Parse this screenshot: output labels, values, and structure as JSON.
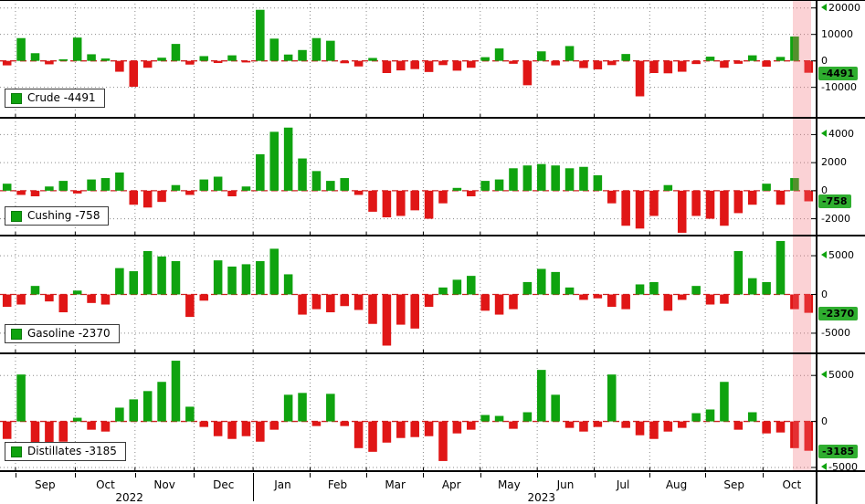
{
  "colors": {
    "green": "#0fa30f",
    "red": "#e01616",
    "zero_line": "#cc2222",
    "grid": "#8a8a8a",
    "badge_bg": "#2fae2f",
    "highlight": "rgba(242,106,116,0.30)"
  },
  "xaxis": {
    "n_weeks": 58,
    "months": [
      {
        "label": "Sep",
        "week": 3.2
      },
      {
        "label": "Oct",
        "week": 7.5
      },
      {
        "label": "Nov",
        "week": 11.7
      },
      {
        "label": "Dec",
        "week": 15.9
      },
      {
        "label": "Jan",
        "week": 20.1
      },
      {
        "label": "Feb",
        "week": 24.0
      },
      {
        "label": "Mar",
        "week": 28.1
      },
      {
        "label": "Apr",
        "week": 32.1
      },
      {
        "label": "May",
        "week": 36.2
      },
      {
        "label": "Jun",
        "week": 40.2
      },
      {
        "label": "Jul",
        "week": 44.3
      },
      {
        "label": "Aug",
        "week": 48.1
      },
      {
        "label": "Sep",
        "week": 52.2
      },
      {
        "label": "Oct",
        "week": 56.3
      }
    ],
    "years": [
      {
        "label": "2022",
        "week": 9.2
      },
      {
        "label": "2023",
        "week": 38.5
      }
    ],
    "year_separator_week": 18.0
  },
  "highlight": {
    "from_week": 56.35,
    "to_week": 57.65
  },
  "chart_data": [
    {
      "type": "bar",
      "name": "Crude",
      "legend": "Crude  -4491",
      "badge": "-4491",
      "last_value": -4491,
      "ylim": [
        -21500,
        23000
      ],
      "yticks": [
        {
          "v": 20000,
          "label": "20000",
          "arrow": true
        },
        {
          "v": 10000,
          "label": "10000"
        },
        {
          "v": 0,
          "label": "0"
        },
        {
          "v": -10000,
          "label": "-10000"
        }
      ],
      "values": [
        -1700,
        8600,
        2900,
        -1300,
        600,
        8800,
        2500,
        900,
        -4100,
        -9800,
        -2600,
        1200,
        6400,
        -1400,
        1800,
        -800,
        2100,
        -600,
        19300,
        8400,
        2400,
        4100,
        8600,
        7600,
        -900,
        -2100,
        1100,
        -4600,
        -3600,
        -3100,
        -4200,
        -1600,
        -3700,
        -2600,
        1400,
        4700,
        -1100,
        -9200,
        3600,
        -1700,
        5600,
        -2700,
        -3200,
        -1600,
        2600,
        -13400,
        -4600,
        -4700,
        -4100,
        -1200,
        1600,
        -2600,
        -1100,
        2100,
        -2200,
        1500,
        9200,
        -4491
      ]
    },
    {
      "type": "bar",
      "name": "Cushing",
      "legend": "Cushing  -758",
      "badge": "-758",
      "last_value": -758,
      "ylim": [
        -3200,
        5200
      ],
      "yticks": [
        {
          "v": 4000,
          "label": "4000",
          "arrow": true
        },
        {
          "v": 2000,
          "label": "2000"
        },
        {
          "v": 0,
          "label": "0"
        },
        {
          "v": -2000,
          "label": "-2000"
        }
      ],
      "values": [
        500,
        -300,
        -400,
        300,
        700,
        -200,
        800,
        900,
        1300,
        -1000,
        -1200,
        -800,
        400,
        -300,
        800,
        1000,
        -400,
        300,
        2600,
        4200,
        4500,
        2300,
        1400,
        700,
        900,
        -300,
        -1500,
        -1900,
        -1800,
        -1400,
        -2000,
        -900,
        200,
        -400,
        700,
        800,
        1600,
        1800,
        1900,
        1800,
        1600,
        1700,
        1100,
        -900,
        -2500,
        -2700,
        -1800,
        400,
        -3000,
        -1800,
        -2000,
        -2500,
        -1600,
        -1000,
        500,
        -1000,
        900,
        -758
      ]
    },
    {
      "type": "bar",
      "name": "Gasoline",
      "legend": "Gasoline  -2370",
      "badge": "-2370",
      "last_value": -2370,
      "ylim": [
        -7600,
        7600
      ],
      "yticks": [
        {
          "v": 5000,
          "label": "5000",
          "arrow": true
        },
        {
          "v": 0,
          "label": "0"
        },
        {
          "v": -5000,
          "label": "-5000"
        }
      ],
      "values": [
        -1600,
        -1300,
        1100,
        -900,
        -2300,
        500,
        -1100,
        -1300,
        3400,
        3000,
        5600,
        4900,
        4300,
        -2900,
        -800,
        4400,
        3600,
        3900,
        4300,
        5900,
        2600,
        -2600,
        -1900,
        -2300,
        -1500,
        -2000,
        -3800,
        -6600,
        -3900,
        -4400,
        -1600,
        900,
        1900,
        2400,
        -2100,
        -2600,
        -1900,
        1600,
        3300,
        2900,
        900,
        -700,
        -500,
        -1600,
        -1900,
        1300,
        1600,
        -2100,
        -700,
        1100,
        -1300,
        -1200,
        5600,
        2100,
        1600,
        6900,
        -1900,
        -2370
      ]
    },
    {
      "type": "bar",
      "name": "Distillates",
      "legend": "Distillates  -3185",
      "badge": "-3185",
      "last_value": -3185,
      "ylim": [
        -5400,
        7400
      ],
      "yticks": [
        {
          "v": 5000,
          "label": "5000",
          "arrow": true
        },
        {
          "v": 0,
          "label": "0"
        },
        {
          "v": -5000,
          "label": "-5000",
          "arrow": true
        }
      ],
      "values": [
        -1900,
        5100,
        -2300,
        -2300,
        -2200,
        400,
        -900,
        -1100,
        1500,
        2400,
        3300,
        4300,
        6600,
        1600,
        -600,
        -1600,
        -1900,
        -1600,
        -2200,
        -900,
        2900,
        3100,
        -500,
        3000,
        -500,
        -2900,
        -3300,
        -2300,
        -1800,
        -1700,
        -1600,
        -4300,
        -1300,
        -900,
        700,
        600,
        -800,
        1000,
        5600,
        2900,
        -700,
        -1100,
        -600,
        5100,
        -700,
        -1500,
        -1900,
        -1100,
        -700,
        900,
        1300,
        4300,
        -900,
        1000,
        -1300,
        -1200,
        -2900,
        -3185
      ]
    }
  ]
}
